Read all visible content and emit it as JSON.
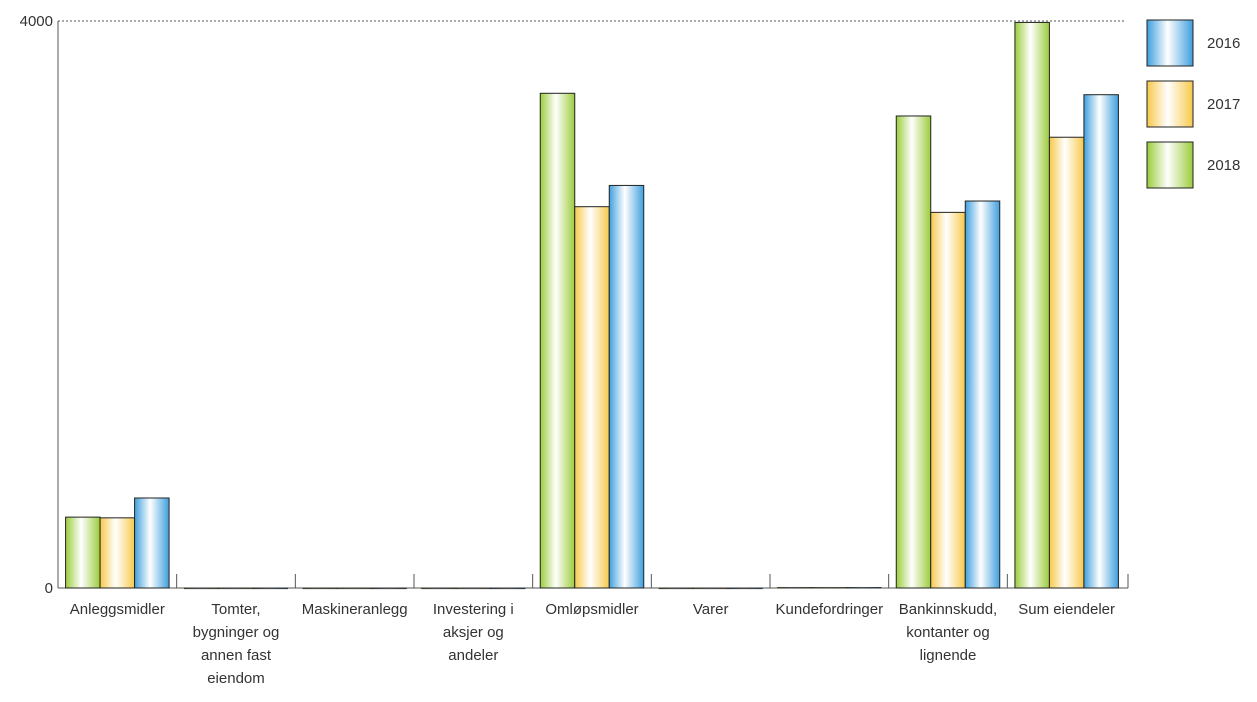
{
  "chart_data": {
    "type": "bar",
    "categories": [
      "Anleggsmidler",
      "Tomter, bygninger og annen fast eiendom",
      "Maskineranlegg",
      "Investering i aksjer og andeler",
      "Omløpsmidler",
      "Varer",
      "Kundefordringer",
      "Bankinnskudd, kontanter og lignende",
      "Sum eiendeler"
    ],
    "category_lines": [
      [
        "Anleggsmidler"
      ],
      [
        "Tomter,",
        "bygninger og",
        "annen fast",
        "eiendom"
      ],
      [
        "Maskineranlegg"
      ],
      [
        "Investering i",
        "aksjer og",
        "andeler"
      ],
      [
        "Omløpsmidler"
      ],
      [
        "Varer"
      ],
      [
        "Kundefordringer"
      ],
      [
        "Bankinnskudd,",
        "kontanter og",
        "lignende"
      ],
      [
        "Sum eiendeler"
      ]
    ],
    "series": [
      {
        "name": "2018",
        "color": "#9ccc3c",
        "values": [
          500,
          0,
          0,
          0,
          3490,
          0,
          5,
          3330,
          3990
        ]
      },
      {
        "name": "2017",
        "color": "#f7c94b",
        "values": [
          495,
          0,
          0,
          0,
          2690,
          0,
          5,
          2650,
          3180
        ]
      },
      {
        "name": "2016",
        "color": "#3f9fde",
        "values": [
          635,
          0,
          0,
          0,
          2840,
          0,
          5,
          2730,
          3480
        ]
      }
    ],
    "legend_order": [
      "2016",
      "2017",
      "2018"
    ],
    "legend_position": "top-right",
    "yticks": [
      0,
      4000
    ],
    "ylim": [
      0,
      4000
    ],
    "grid": false
  }
}
